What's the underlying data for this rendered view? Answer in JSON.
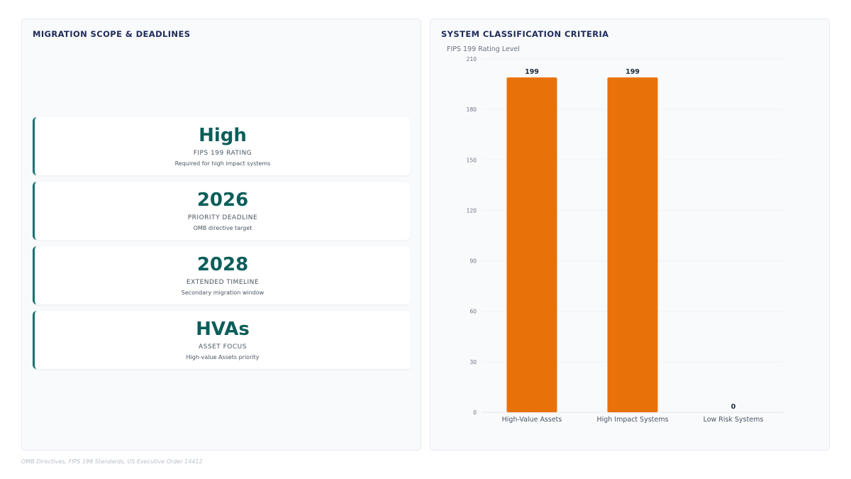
{
  "left_panel": {
    "title": "MIGRATION SCOPE & DEADLINES",
    "cards": [
      {
        "value": "High",
        "label": "FIPS 199 RATING",
        "desc": "Required for high impact systems"
      },
      {
        "value": "2026",
        "label": "PRIORITY DEADLINE",
        "desc": "OMB directive target"
      },
      {
        "value": "2028",
        "label": "EXTENDED TIMELINE",
        "desc": "Secondary migration window"
      },
      {
        "value": "HVAs",
        "label": "ASSET FOCUS",
        "desc": "High-value Assets priority"
      }
    ]
  },
  "right_panel": {
    "title": "SYSTEM CLASSIFICATION CRITERIA"
  },
  "chart_data": {
    "type": "bar",
    "title": "SYSTEM CLASSIFICATION CRITERIA",
    "ylabel": "FIPS 199 Rating Level",
    "xlabel": "",
    "categories": [
      "High-Value Assets",
      "High Impact Systems",
      "Low Risk Systems"
    ],
    "values": [
      199,
      199,
      0
    ],
    "ylim": [
      0,
      210
    ],
    "yticks": [
      0,
      30,
      60,
      90,
      120,
      150,
      180,
      210
    ],
    "bar_color": "#e8710a",
    "grid": true,
    "legend": "none"
  },
  "footer": {
    "sources": "OMB Directives, FIPS 199 Standards, US Executive Order 14412"
  },
  "colors": {
    "accent": "#0f766e",
    "value_text": "#0b5e5a",
    "title_text": "#1e2a5a",
    "bar": "#e8710a"
  }
}
